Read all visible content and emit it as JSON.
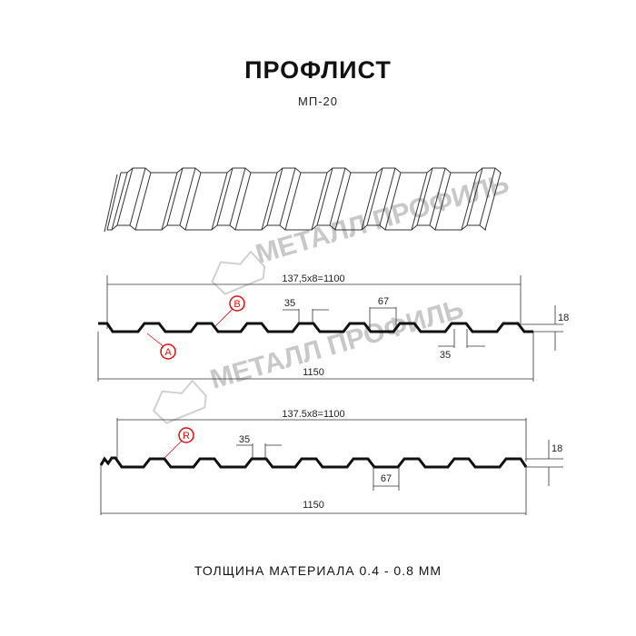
{
  "title": "ПРОФЛИСТ",
  "subtitle": "МП-20",
  "footer": "ТОЛЩИНА МАТЕРИАЛА 0.4 - 0.8 ММ",
  "watermark": "МЕТАЛЛ ПРОФИЛЬ",
  "profile_a": {
    "pitch_label": "137,5x8=1100",
    "crest_label": "35",
    "trough_label": "35",
    "valley_label": "67",
    "height_label": "18",
    "width_label": "1150",
    "marker_a": "A",
    "marker_b": "B"
  },
  "profile_b": {
    "pitch_label": "137.5x8=1100",
    "crest_label": "35",
    "valley_label": "67",
    "height_label": "18",
    "width_label": "1150",
    "marker_r": "R"
  },
  "colors": {
    "line": "#111111",
    "marker": "#e01010",
    "dimension": "#333333",
    "watermark": "#c8c8c8"
  }
}
